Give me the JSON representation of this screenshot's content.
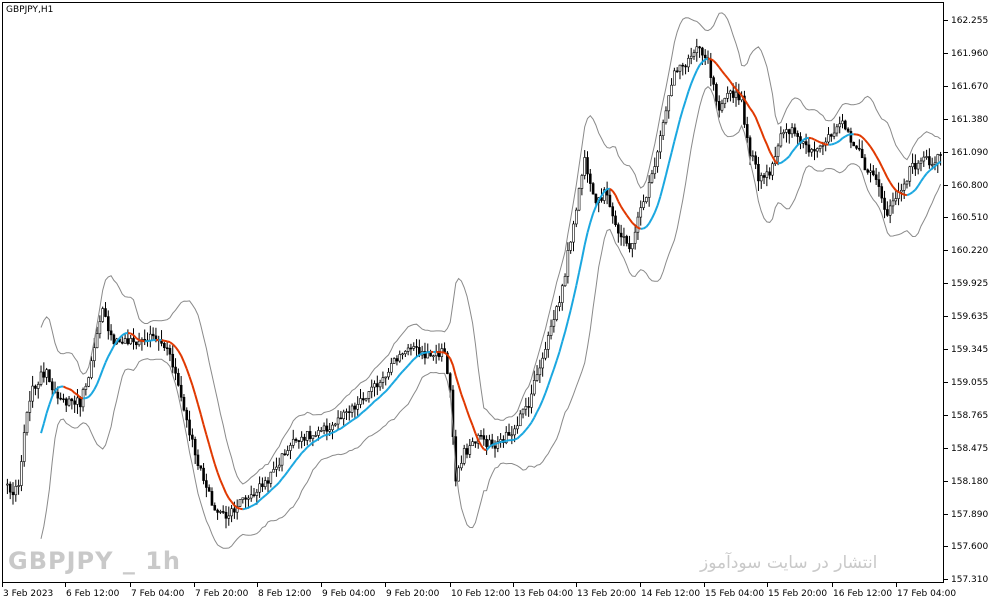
{
  "chart_data": {
    "type": "candlestick",
    "symbol_label": "GBPJPY,H1",
    "watermark_symbol": "GBPJPY _ 1h",
    "watermark_site": "انتشار در سایت سودآموز",
    "y_ticks": [
      "162.255",
      "161.960",
      "161.670",
      "161.380",
      "161.090",
      "160.800",
      "160.510",
      "160.220",
      "159.925",
      "159.635",
      "159.345",
      "159.055",
      "158.765",
      "158.475",
      "158.180",
      "157.890",
      "157.600",
      "157.310"
    ],
    "ylim": [
      157.29,
      162.41
    ],
    "x_ticks": [
      "3 Feb 2023",
      "6 Feb 12:00",
      "7 Feb 04:00",
      "7 Feb 20:00",
      "8 Feb 12:00",
      "9 Feb 04:00",
      "9 Feb 20:00",
      "10 Feb 12:00",
      "13 Feb 04:00",
      "13 Feb 20:00",
      "14 Feb 12:00",
      "15 Feb 04:00",
      "15 Feb 20:00",
      "16 Feb 12:00",
      "17 Feb 04:00"
    ],
    "price_anchors": [
      [
        0,
        158.17
      ],
      [
        2,
        158.08
      ],
      [
        4,
        158.15
      ],
      [
        6,
        158.6
      ],
      [
        8,
        158.95
      ],
      [
        10,
        159.05
      ],
      [
        14,
        159.2
      ],
      [
        18,
        158.9
      ],
      [
        22,
        158.92
      ],
      [
        26,
        158.9
      ],
      [
        30,
        159.25
      ],
      [
        34,
        159.7
      ],
      [
        38,
        159.45
      ],
      [
        45,
        159.43
      ],
      [
        52,
        159.48
      ],
      [
        58,
        159.35
      ],
      [
        62,
        158.95
      ],
      [
        66,
        158.55
      ],
      [
        70,
        158.2
      ],
      [
        74,
        157.95
      ],
      [
        78,
        157.9
      ],
      [
        82,
        158.0
      ],
      [
        88,
        158.1
      ],
      [
        94,
        158.25
      ],
      [
        100,
        158.5
      ],
      [
        104,
        158.6
      ],
      [
        110,
        158.6
      ],
      [
        116,
        158.7
      ],
      [
        124,
        158.85
      ],
      [
        130,
        159.0
      ],
      [
        136,
        159.2
      ],
      [
        142,
        159.38
      ],
      [
        150,
        159.32
      ],
      [
        156,
        159.35
      ],
      [
        158,
        159.0
      ],
      [
        160,
        158.2
      ],
      [
        163,
        158.45
      ],
      [
        168,
        158.6
      ],
      [
        174,
        158.5
      ],
      [
        180,
        158.65
      ],
      [
        186,
        158.9
      ],
      [
        192,
        159.4
      ],
      [
        198,
        159.9
      ],
      [
        202,
        160.5
      ],
      [
        206,
        161.05
      ],
      [
        210,
        160.7
      ],
      [
        214,
        160.75
      ],
      [
        218,
        160.4
      ],
      [
        222,
        160.25
      ],
      [
        226,
        160.6
      ],
      [
        230,
        160.9
      ],
      [
        234,
        161.4
      ],
      [
        238,
        161.8
      ],
      [
        242,
        161.9
      ],
      [
        246,
        162.02
      ],
      [
        250,
        161.9
      ],
      [
        254,
        161.45
      ],
      [
        258,
        161.65
      ],
      [
        262,
        161.6
      ],
      [
        264,
        161.2
      ],
      [
        268,
        160.9
      ],
      [
        272,
        160.95
      ],
      [
        276,
        161.25
      ],
      [
        280,
        161.3
      ],
      [
        286,
        161.15
      ],
      [
        292,
        161.2
      ],
      [
        298,
        161.35
      ],
      [
        302,
        161.2
      ],
      [
        306,
        161.0
      ],
      [
        310,
        160.85
      ],
      [
        314,
        160.58
      ],
      [
        318,
        160.75
      ],
      [
        322,
        160.95
      ],
      [
        326,
        161.05
      ],
      [
        330,
        161.03
      ],
      [
        333,
        161.1
      ]
    ],
    "series": [
      {
        "name": "GBPJPY,H1",
        "color_up": "#000000",
        "color_down": "#000000"
      },
      {
        "color_rising": "#1aa7e0",
        "color_falling": "#e03800"
      },
      {
        "color": "#8a8a8a"
      },
      {
        "color": "#8a8a8a"
      }
    ],
    "grid": false,
    "background": "#ffffff"
  }
}
